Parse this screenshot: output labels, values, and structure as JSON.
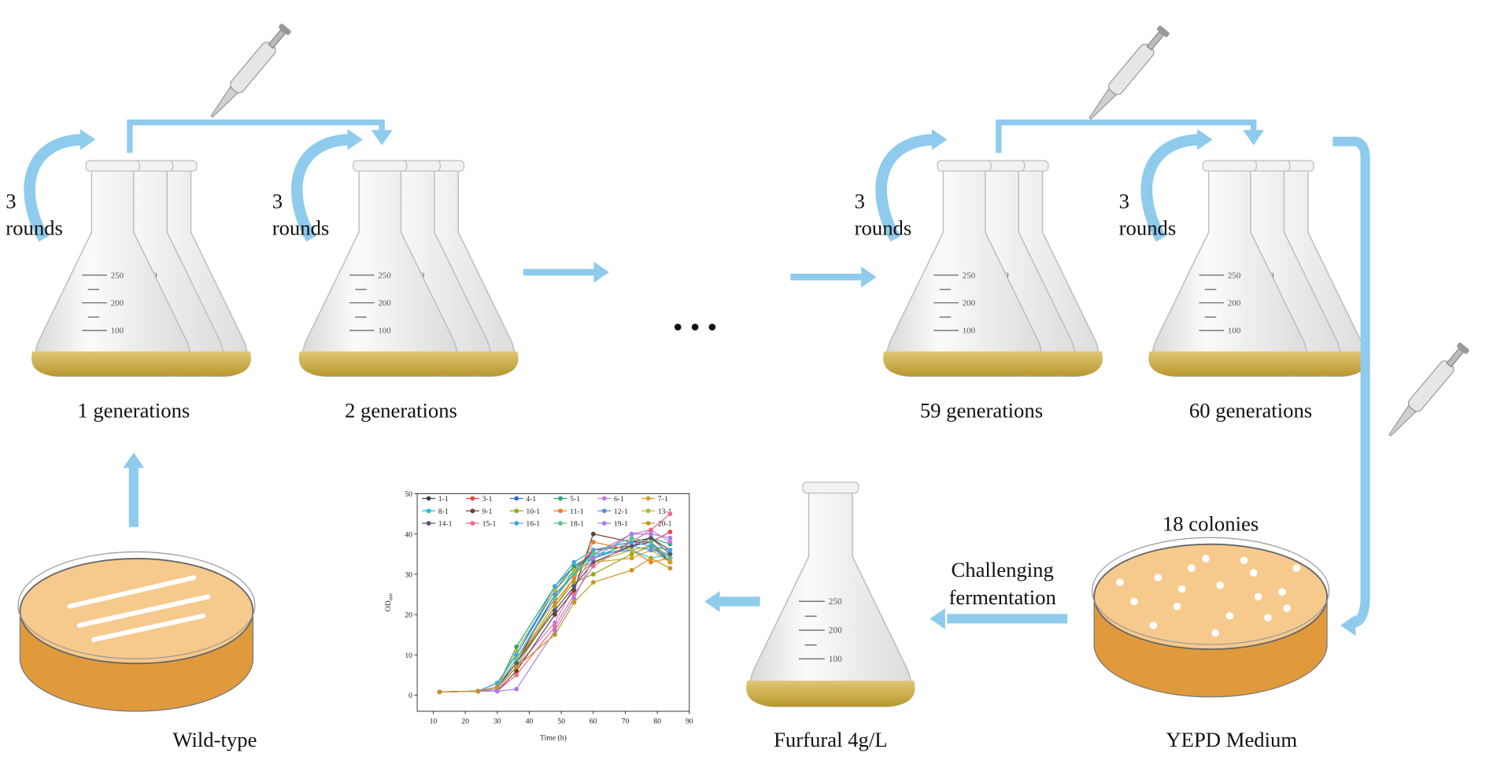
{
  "diagram": {
    "stages": [
      {
        "label": "1 generations",
        "rounds": [
          "3",
          "rounds"
        ]
      },
      {
        "label": "2 generations",
        "rounds": [
          "3",
          "rounds"
        ]
      },
      {
        "label": "59 generations",
        "rounds": [
          "3",
          "rounds"
        ]
      },
      {
        "label": "60 generations",
        "rounds": [
          "3",
          "rounds"
        ]
      }
    ],
    "flask_scale": [
      "250",
      "200",
      "100"
    ],
    "colonies_label": "18 colonies",
    "challenge_label": [
      "Challenging",
      "fermentation"
    ],
    "furfural_label": "Furfural 4g/L",
    "yepd_label": "YEPD Medium",
    "wildtype_label": "Wild-type"
  },
  "chart_data": {
    "type": "line",
    "xlabel": "Time (h)",
    "ylabel": {
      "text": "OD",
      "subscript": "600"
    },
    "x": [
      12,
      24,
      30,
      36,
      48,
      54,
      60,
      72,
      78,
      84
    ],
    "xlim": [
      5,
      90
    ],
    "ylim": [
      -4,
      50
    ],
    "xticks": [
      10,
      20,
      30,
      40,
      50,
      60,
      70,
      80,
      90
    ],
    "yticks": [
      0,
      10,
      20,
      30,
      40,
      50
    ],
    "legend": "upper left",
    "series": [
      {
        "name": "1-1",
        "color": "#444444",
        "values": [
          0.8,
          1,
          2,
          8,
          25,
          30,
          36,
          37,
          38,
          33
        ]
      },
      {
        "name": "3-1",
        "color": "#e8474c",
        "values": [
          0.8,
          1,
          2,
          9,
          24,
          31,
          36,
          38,
          38,
          40.5
        ]
      },
      {
        "name": "4-1",
        "color": "#2f6fd6",
        "values": [
          0.8,
          1,
          3,
          10,
          26,
          32,
          35,
          36,
          37,
          33
        ]
      },
      {
        "name": "5-1",
        "color": "#2aa876",
        "values": [
          0.8,
          1,
          2,
          12,
          27,
          32,
          34,
          38,
          39,
          37.5
        ]
      },
      {
        "name": "6-1",
        "color": "#c77be0",
        "values": [
          0.8,
          1,
          1.5,
          7,
          18,
          27,
          35,
          40,
          41,
          38
        ]
      },
      {
        "name": "7-1",
        "color": "#d4a017",
        "values": [
          0.8,
          1,
          2,
          8,
          22,
          29,
          33,
          34,
          36,
          33
        ]
      },
      {
        "name": "8-1",
        "color": "#1cc3e0",
        "values": [
          0.8,
          1,
          2,
          9,
          24,
          31,
          35,
          36,
          34,
          35
        ]
      },
      {
        "name": "9-1",
        "color": "#6b3e2e",
        "values": [
          0.8,
          1,
          1,
          6,
          20,
          26,
          40,
          38,
          39,
          36
        ]
      },
      {
        "name": "10-1",
        "color": "#9aa51b",
        "values": [
          0.8,
          1,
          2,
          7,
          22,
          28,
          30,
          35,
          37,
          34
        ]
      },
      {
        "name": "11-1",
        "color": "#f07f24",
        "values": [
          0.8,
          1,
          2,
          8,
          23,
          29,
          38,
          36,
          33,
          34
        ]
      },
      {
        "name": "12-1",
        "color": "#5b8fd9",
        "values": [
          0.8,
          1,
          2,
          9,
          25,
          30,
          34,
          37,
          36,
          35
        ]
      },
      {
        "name": "13-1",
        "color": "#b5b83a",
        "values": [
          0.8,
          1,
          2,
          11,
          26,
          31,
          33,
          36,
          37,
          36
        ]
      },
      {
        "name": "14-1",
        "color": "#555577",
        "values": [
          0.8,
          1,
          2,
          8,
          21,
          27,
          33,
          37,
          39,
          35
        ]
      },
      {
        "name": "15-1",
        "color": "#f06a8a",
        "values": [
          0.8,
          1,
          1,
          5,
          17,
          25,
          32,
          38,
          41,
          45
        ]
      },
      {
        "name": "16-1",
        "color": "#4aa3df",
        "values": [
          0.8,
          1,
          3,
          10,
          27,
          33,
          36,
          38,
          37,
          36
        ]
      },
      {
        "name": "18-1",
        "color": "#5cc48a",
        "values": [
          0.8,
          1,
          2,
          9,
          24,
          30,
          35,
          39,
          38,
          34
        ]
      },
      {
        "name": "19-1",
        "color": "#a77de8",
        "values": [
          0.8,
          1,
          1,
          1.5,
          16,
          24,
          34,
          40,
          40,
          39
        ]
      },
      {
        "name": "20-1",
        "color": "#c8961e",
        "values": [
          0.8,
          1,
          2,
          7,
          15,
          23,
          28,
          31,
          34,
          31.5
        ]
      }
    ]
  }
}
